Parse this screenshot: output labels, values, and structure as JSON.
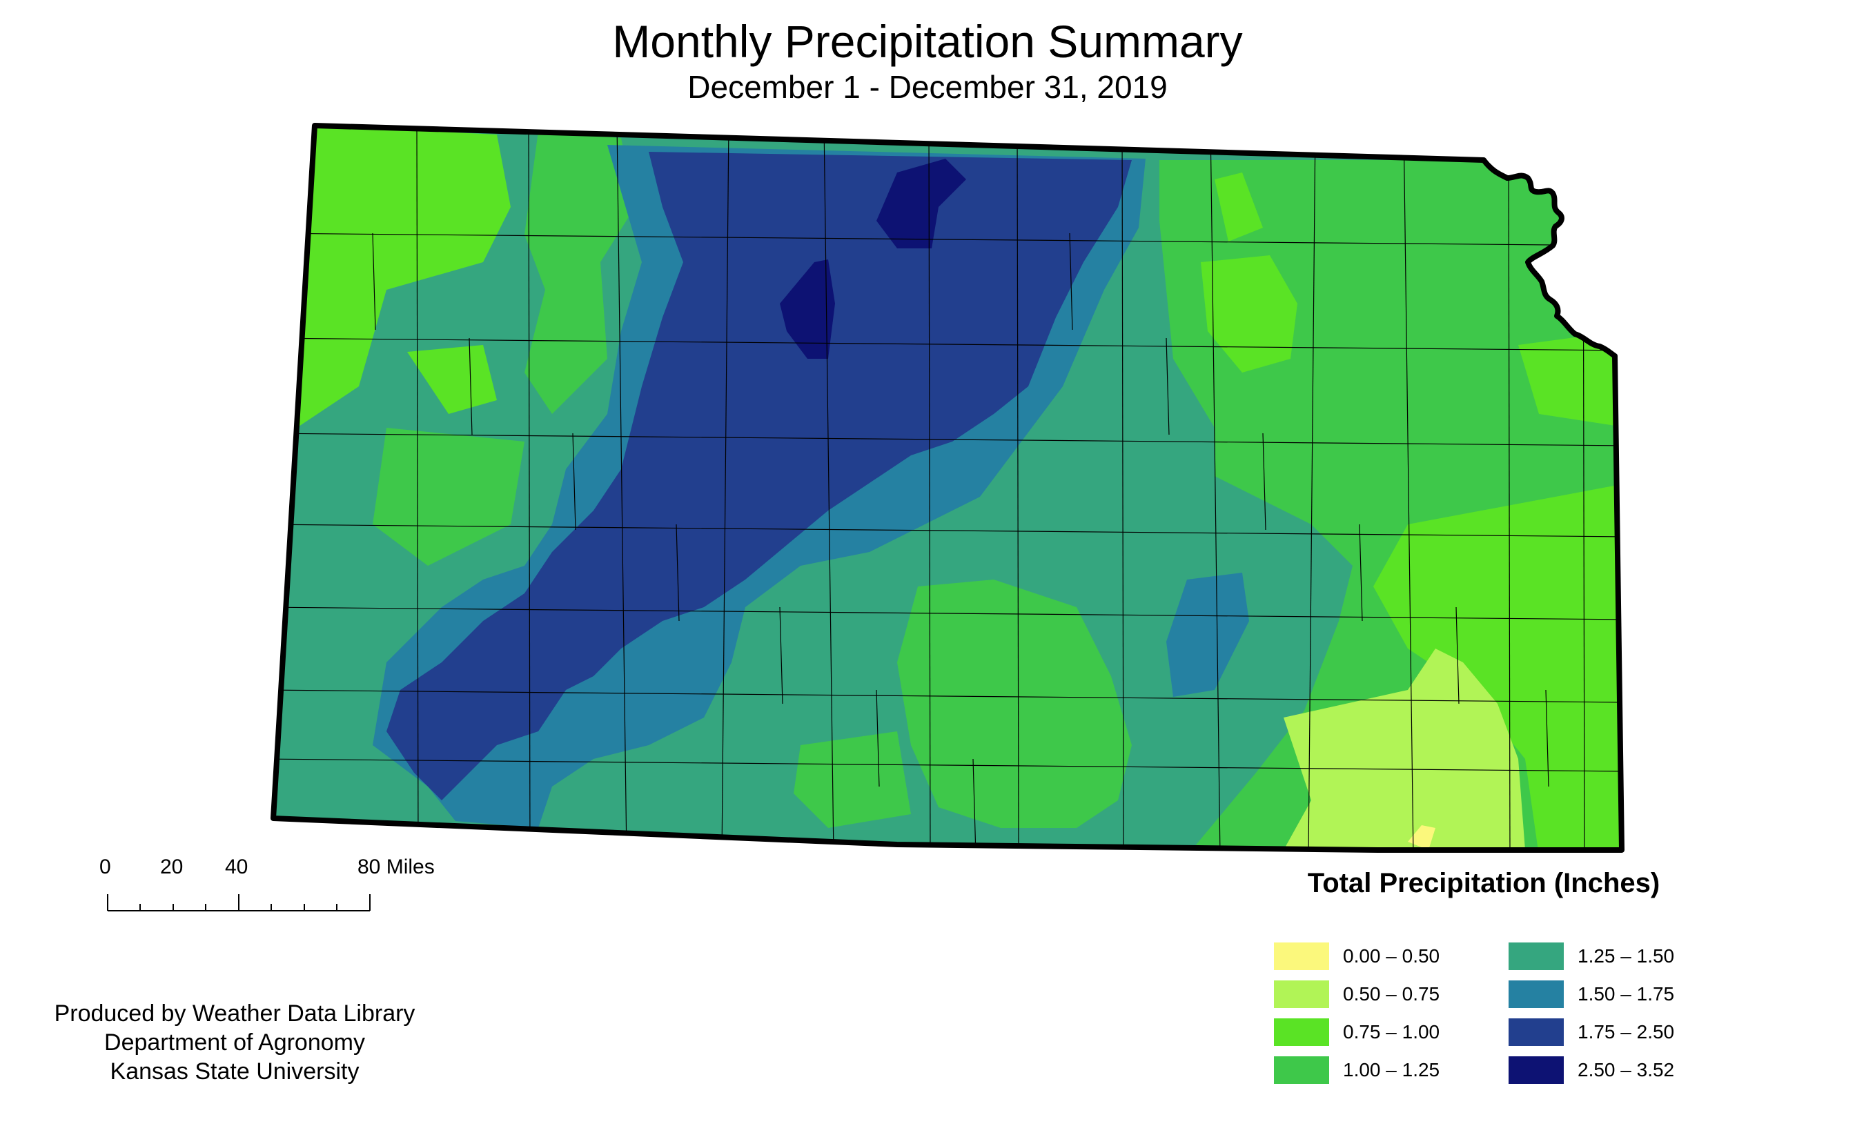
{
  "map": {
    "title": "Monthly Precipitation Summary",
    "subtitle": "December 1 - December 31, 2019",
    "region": "Kansas"
  },
  "scale_bar": {
    "labels": [
      "0",
      "20",
      "40",
      "80 Miles"
    ]
  },
  "credits": [
    "Produced by Weather Data Library",
    "Department of Agronomy",
    "Kansas State University"
  ],
  "legend": {
    "title": "Total Precipitation (Inches)",
    "classes": [
      {
        "label": "0.00 – 0.50",
        "color": "#fbf87c"
      },
      {
        "label": "0.50 – 0.75",
        "color": "#b1f456"
      },
      {
        "label": "0.75 – 1.00",
        "color": "#5ae325"
      },
      {
        "label": "1.00 – 1.25",
        "color": "#3ec84a"
      },
      {
        "label": "1.25 – 1.50",
        "color": "#35a67f"
      },
      {
        "label": "1.50 – 1.75",
        "color": "#2581a2"
      },
      {
        "label": "1.75 – 2.50",
        "color": "#223f8e"
      },
      {
        "label": "2.50 – 3.52",
        "color": "#0d1273"
      }
    ]
  }
}
